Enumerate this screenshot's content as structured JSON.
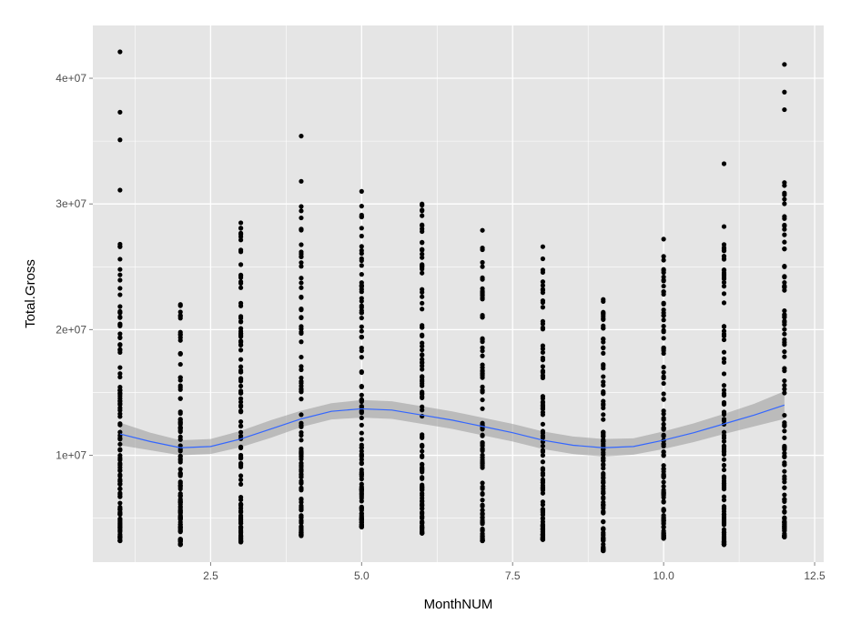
{
  "chart_data": {
    "type": "scatter",
    "title": "",
    "xlabel": "MonthNUM",
    "ylabel": "Total.Gross",
    "xlim": [
      0.55,
      12.65
    ],
    "ylim": [
      1500000,
      44200000
    ],
    "x_ticks": [
      2.5,
      5.0,
      7.5,
      10.0,
      12.5
    ],
    "x_tick_labels": [
      "2.5",
      "5.0",
      "7.5",
      "10.0",
      "12.5"
    ],
    "y_ticks": [
      10000000,
      20000000,
      30000000,
      40000000
    ],
    "y_tick_labels": [
      "1e+07",
      "2e+07",
      "3e+07",
      "4e+07"
    ],
    "grid": true,
    "background_color": "#e5e5e5",
    "grid_color": "#ffffff",
    "point_color": "#000000",
    "smooth_color": "#3366ff",
    "ribbon_color": "#999999",
    "columns": [
      {
        "month": 1,
        "range": [
          3200000,
          26800000
        ],
        "outliers": [
          31100000,
          35100000,
          37300000,
          42100000
        ]
      },
      {
        "month": 2,
        "range": [
          2900000,
          22000000
        ],
        "outliers": []
      },
      {
        "month": 3,
        "range": [
          3100000,
          28500000
        ],
        "outliers": []
      },
      {
        "month": 4,
        "range": [
          3600000,
          29800000
        ],
        "outliers": [
          31800000,
          35400000
        ]
      },
      {
        "month": 5,
        "range": [
          4300000,
          31000000
        ],
        "outliers": []
      },
      {
        "month": 6,
        "range": [
          3800000,
          30000000
        ],
        "outliers": []
      },
      {
        "month": 7,
        "range": [
          3200000,
          27900000
        ],
        "outliers": []
      },
      {
        "month": 8,
        "range": [
          3300000,
          26600000
        ],
        "outliers": []
      },
      {
        "month": 9,
        "range": [
          2400000,
          22400000
        ],
        "outliers": []
      },
      {
        "month": 10,
        "range": [
          3400000,
          27200000
        ],
        "outliers": []
      },
      {
        "month": 11,
        "range": [
          2900000,
          28200000
        ],
        "outliers": [
          33200000
        ]
      },
      {
        "month": 12,
        "range": [
          3500000,
          31700000
        ],
        "outliers": [
          37500000,
          38900000,
          41100000
        ]
      }
    ],
    "smooth": {
      "x": [
        1,
        1.5,
        2,
        2.5,
        3,
        3.5,
        4,
        4.5,
        5,
        5.5,
        6,
        6.5,
        7,
        7.5,
        8,
        8.5,
        9,
        9.5,
        10,
        10.5,
        11,
        11.5,
        12
      ],
      "y": [
        11700000,
        11100000,
        10600000,
        10700000,
        11300000,
        12100000,
        12900000,
        13500000,
        13700000,
        13600000,
        13200000,
        12800000,
        12300000,
        11800000,
        11200000,
        10800000,
        10600000,
        10700000,
        11200000,
        11800000,
        12500000,
        13200000,
        14000000
      ],
      "band_halfwidth": [
        900000,
        700000,
        600000,
        600000,
        650000,
        700000,
        650000,
        650000,
        700000,
        700000,
        700000,
        700000,
        700000,
        700000,
        700000,
        700000,
        700000,
        650000,
        700000,
        750000,
        800000,
        900000,
        1100000
      ]
    }
  }
}
